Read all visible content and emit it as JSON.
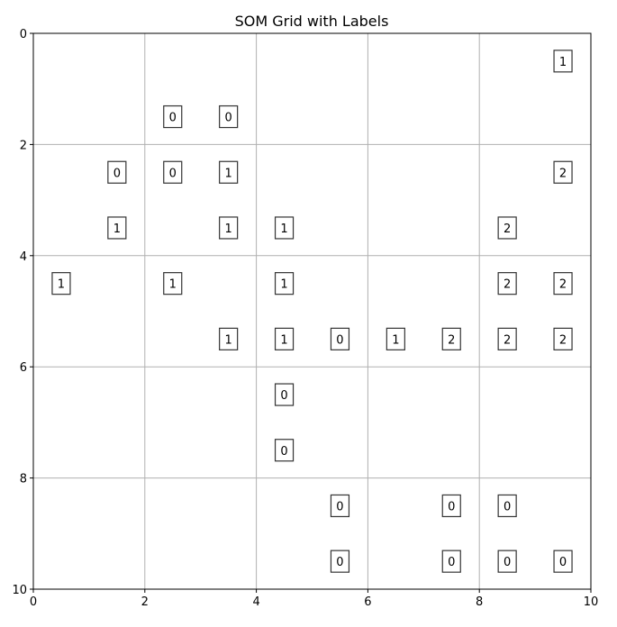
{
  "chart_data": {
    "type": "scatter",
    "title": "SOM Grid with Labels",
    "xlabel": "",
    "ylabel": "",
    "xlim": [
      0,
      10
    ],
    "ylim": [
      10,
      0
    ],
    "x_ticks": [
      "0",
      "2",
      "4",
      "6",
      "8",
      "10"
    ],
    "y_ticks": [
      "0",
      "2",
      "4",
      "6",
      "8",
      "10"
    ],
    "grid": true,
    "points": [
      {
        "x": 9.5,
        "y": 0.5,
        "label": "1"
      },
      {
        "x": 2.5,
        "y": 1.5,
        "label": "0"
      },
      {
        "x": 3.5,
        "y": 1.5,
        "label": "0"
      },
      {
        "x": 1.5,
        "y": 2.5,
        "label": "0"
      },
      {
        "x": 2.5,
        "y": 2.5,
        "label": "0"
      },
      {
        "x": 3.5,
        "y": 2.5,
        "label": "1"
      },
      {
        "x": 9.5,
        "y": 2.5,
        "label": "2"
      },
      {
        "x": 1.5,
        "y": 3.5,
        "label": "1"
      },
      {
        "x": 3.5,
        "y": 3.5,
        "label": "1"
      },
      {
        "x": 4.5,
        "y": 3.5,
        "label": "1"
      },
      {
        "x": 8.5,
        "y": 3.5,
        "label": "2"
      },
      {
        "x": 0.5,
        "y": 4.5,
        "label": "1"
      },
      {
        "x": 2.5,
        "y": 4.5,
        "label": "1"
      },
      {
        "x": 4.5,
        "y": 4.5,
        "label": "1"
      },
      {
        "x": 8.5,
        "y": 4.5,
        "label": "2"
      },
      {
        "x": 9.5,
        "y": 4.5,
        "label": "2"
      },
      {
        "x": 3.5,
        "y": 5.5,
        "label": "1"
      },
      {
        "x": 4.5,
        "y": 5.5,
        "label": "1"
      },
      {
        "x": 5.5,
        "y": 5.5,
        "label": "0"
      },
      {
        "x": 6.5,
        "y": 5.5,
        "label": "1"
      },
      {
        "x": 7.5,
        "y": 5.5,
        "label": "2"
      },
      {
        "x": 8.5,
        "y": 5.5,
        "label": "2"
      },
      {
        "x": 9.5,
        "y": 5.5,
        "label": "2"
      },
      {
        "x": 4.5,
        "y": 6.5,
        "label": "0"
      },
      {
        "x": 4.5,
        "y": 7.5,
        "label": "0"
      },
      {
        "x": 5.5,
        "y": 8.5,
        "label": "0"
      },
      {
        "x": 7.5,
        "y": 8.5,
        "label": "0"
      },
      {
        "x": 8.5,
        "y": 8.5,
        "label": "0"
      },
      {
        "x": 5.5,
        "y": 9.5,
        "label": "0"
      },
      {
        "x": 7.5,
        "y": 9.5,
        "label": "0"
      },
      {
        "x": 8.5,
        "y": 9.5,
        "label": "0"
      },
      {
        "x": 9.5,
        "y": 9.5,
        "label": "0"
      }
    ]
  }
}
